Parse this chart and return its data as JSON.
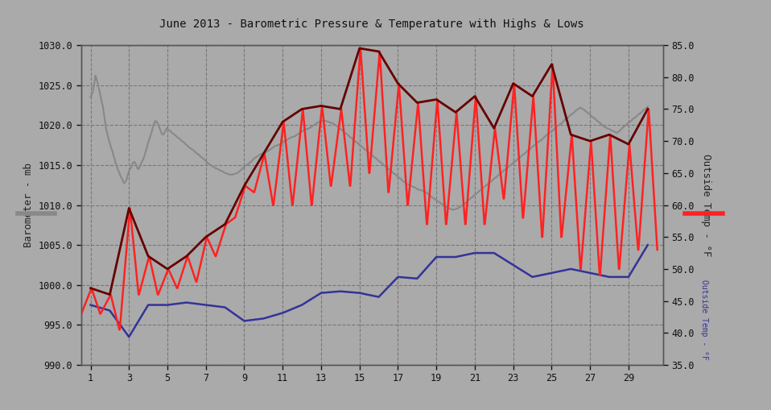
{
  "title": "June 2013 - Barometric Pressure & Temperature with Highs & Lows",
  "ylabel_left": "Barometer - mb",
  "ylabel_right": "Outside Temp - °F",
  "xlim": [
    0.5,
    30.8
  ],
  "ylim_left": [
    990.0,
    1030.0
  ],
  "ylim_right": [
    35.0,
    85.0
  ],
  "yticks_left": [
    990.0,
    995.0,
    1000.0,
    1005.0,
    1010.0,
    1015.0,
    1020.0,
    1025.0,
    1030.0
  ],
  "yticks_right": [
    35.0,
    40.0,
    45.0,
    50.0,
    55.0,
    60.0,
    65.0,
    70.0,
    75.0,
    80.0,
    85.0
  ],
  "xticks": [
    1,
    3,
    5,
    7,
    9,
    11,
    13,
    15,
    17,
    19,
    21,
    23,
    25,
    27,
    29
  ],
  "bg_color": "#aaaaaa",
  "plot_bg_color": "#aaaaaa",
  "baro_color": "#888888",
  "baro_daily_color": "#333399",
  "temp_high_color": "#660000",
  "temp_low_color": "#ff2222",
  "days": [
    1,
    2,
    3,
    4,
    5,
    6,
    7,
    8,
    9,
    10,
    11,
    12,
    13,
    14,
    15,
    16,
    17,
    18,
    19,
    20,
    21,
    22,
    23,
    24,
    25,
    26,
    27,
    28,
    29,
    30
  ],
  "temp_high_f": [
    47.0,
    46.0,
    59.5,
    52.0,
    50.0,
    52.0,
    55.0,
    57.0,
    63.0,
    68.0,
    73.0,
    75.0,
    75.5,
    75.0,
    84.5,
    84.0,
    79.0,
    76.0,
    76.5,
    74.5,
    77.0,
    72.0,
    79.0,
    77.0,
    82.0,
    71.0,
    70.0,
    71.0,
    69.5,
    75.0
  ],
  "temp_low_f": [
    43.0,
    43.0,
    40.5,
    46.0,
    46.0,
    47.0,
    48.0,
    52.0,
    58.0,
    62.0,
    60.0,
    60.0,
    60.0,
    63.0,
    63.0,
    65.0,
    62.0,
    60.0,
    57.0,
    57.0,
    57.0,
    57.0,
    61.0,
    58.0,
    55.0,
    55.0,
    50.0,
    49.0,
    50.0,
    53.0
  ],
  "baro_continuous_x": [
    1.0,
    1.03,
    1.06,
    1.09,
    1.13,
    1.16,
    1.19,
    1.22,
    1.25,
    1.28,
    1.31,
    1.34,
    1.38,
    1.41,
    1.44,
    1.47,
    1.5,
    1.53,
    1.56,
    1.59,
    1.63,
    1.66,
    1.69,
    1.72,
    1.75,
    1.78,
    1.81,
    1.84,
    1.88,
    1.91,
    1.94,
    1.97,
    2.0,
    2.03,
    2.06,
    2.09,
    2.13,
    2.16,
    2.19,
    2.22,
    2.25,
    2.28,
    2.31,
    2.34,
    2.38,
    2.41,
    2.44,
    2.47,
    2.5,
    2.53,
    2.56,
    2.59,
    2.63,
    2.66,
    2.69,
    2.72,
    2.75,
    2.78,
    2.81,
    2.84,
    2.88,
    2.91,
    2.94,
    2.97,
    3.0,
    3.03,
    3.06,
    3.09,
    3.13,
    3.16,
    3.19,
    3.22,
    3.25,
    3.28,
    3.31,
    3.34,
    3.38,
    3.41,
    3.44,
    3.47,
    3.5,
    3.53,
    3.56,
    3.59,
    3.63,
    3.66,
    3.69,
    3.72,
    3.75,
    3.78,
    3.81,
    3.84,
    3.88,
    3.91,
    3.94,
    3.97,
    4.0,
    4.03,
    4.06,
    4.09,
    4.13,
    4.16,
    4.19,
    4.22,
    4.25,
    4.28,
    4.31,
    4.34,
    4.38,
    4.41,
    4.44,
    4.47,
    4.5,
    4.53,
    4.56,
    4.59,
    4.63,
    4.66,
    4.69,
    4.72,
    4.75,
    4.78,
    4.81,
    4.84,
    4.88,
    4.91,
    4.94,
    4.97,
    5.0,
    5.13,
    5.25,
    5.38,
    5.5,
    5.63,
    5.75,
    5.88,
    6.0,
    6.13,
    6.25,
    6.38,
    6.5,
    6.63,
    6.75,
    6.88,
    7.0,
    7.13,
    7.25,
    7.38,
    7.5,
    7.63,
    7.75,
    7.88,
    8.0,
    8.13,
    8.25,
    8.38,
    8.5,
    8.63,
    8.75,
    8.88,
    9.0,
    9.13,
    9.25,
    9.38,
    9.5,
    9.63,
    9.75,
    9.88,
    10.0,
    10.13,
    10.25,
    10.38,
    10.5,
    10.63,
    10.75,
    10.88,
    11.0,
    11.13,
    11.25,
    11.38,
    11.5,
    11.63,
    11.75,
    11.88,
    12.0,
    12.13,
    12.25,
    12.38,
    12.5,
    12.63,
    12.75,
    12.88,
    13.0,
    13.13,
    13.25,
    13.38,
    13.5,
    13.63,
    13.75,
    13.88,
    14.0,
    14.13,
    14.25,
    14.38,
    14.5,
    14.63,
    14.75,
    14.88,
    15.0,
    15.13,
    15.25,
    15.38,
    15.5,
    15.63,
    15.75,
    15.88,
    16.0,
    16.13,
    16.25,
    16.38,
    16.5,
    16.63,
    16.75,
    16.88,
    17.0,
    17.13,
    17.25,
    17.38,
    17.5,
    17.63,
    17.75,
    17.88,
    18.0,
    18.13,
    18.25,
    18.38,
    18.5,
    18.63,
    18.75,
    18.88,
    19.0,
    19.13,
    19.25,
    19.38,
    19.5,
    19.63,
    19.75,
    19.88,
    20.0,
    20.13,
    20.25,
    20.38,
    20.5,
    20.63,
    20.75,
    20.88,
    21.0,
    21.13,
    21.25,
    21.38,
    21.5,
    21.63,
    21.75,
    21.88,
    22.0,
    22.13,
    22.25,
    22.38,
    22.5,
    22.63,
    22.75,
    22.88,
    23.0,
    23.13,
    23.25,
    23.38,
    23.5,
    23.63,
    23.75,
    23.88,
    24.0,
    24.13,
    24.25,
    24.38,
    24.5,
    24.63,
    24.75,
    24.88,
    25.0,
    25.13,
    25.25,
    25.38,
    25.5,
    25.63,
    25.75,
    25.88,
    26.0,
    26.13,
    26.25,
    26.38,
    26.5,
    26.63,
    26.75,
    26.88,
    27.0,
    27.13,
    27.25,
    27.38,
    27.5,
    27.63,
    27.75,
    27.88,
    28.0,
    28.13,
    28.25,
    28.38,
    28.5,
    28.63,
    28.75,
    28.88,
    29.0,
    29.13,
    29.25,
    29.38,
    29.5,
    29.63,
    29.75,
    29.88,
    30.0
  ],
  "baro_continuous_y": [
    1023.5,
    1023.6,
    1023.8,
    1024.0,
    1024.3,
    1024.8,
    1025.2,
    1025.6,
    1026.2,
    1026.0,
    1025.8,
    1025.5,
    1025.2,
    1024.8,
    1024.5,
    1024.2,
    1023.8,
    1023.5,
    1023.2,
    1022.8,
    1022.5,
    1022.0,
    1021.5,
    1021.0,
    1020.5,
    1020.0,
    1019.5,
    1019.2,
    1018.8,
    1018.5,
    1018.2,
    1018.0,
    1017.8,
    1017.5,
    1017.2,
    1017.0,
    1016.8,
    1016.5,
    1016.2,
    1016.0,
    1015.8,
    1015.5,
    1015.2,
    1015.0,
    1014.8,
    1014.5,
    1014.3,
    1014.2,
    1014.0,
    1013.8,
    1013.6,
    1013.5,
    1013.3,
    1013.2,
    1013.0,
    1012.8,
    1012.7,
    1012.8,
    1012.9,
    1013.0,
    1013.2,
    1013.5,
    1013.8,
    1014.0,
    1014.2,
    1014.4,
    1014.5,
    1014.6,
    1014.8,
    1015.0,
    1015.2,
    1015.3,
    1015.4,
    1015.4,
    1015.3,
    1015.2,
    1015.0,
    1014.8,
    1014.6,
    1014.5,
    1014.5,
    1014.6,
    1014.8,
    1015.0,
    1015.2,
    1015.4,
    1015.5,
    1015.6,
    1015.8,
    1016.0,
    1016.2,
    1016.5,
    1016.8,
    1017.0,
    1017.3,
    1017.5,
    1017.8,
    1018.0,
    1018.2,
    1018.5,
    1018.8,
    1019.0,
    1019.2,
    1019.5,
    1019.8,
    1020.0,
    1020.2,
    1020.4,
    1020.5,
    1020.5,
    1020.4,
    1020.3,
    1020.2,
    1020.0,
    1019.8,
    1019.6,
    1019.4,
    1019.2,
    1019.0,
    1018.9,
    1018.8,
    1018.8,
    1018.9,
    1019.0,
    1019.2,
    1019.4,
    1019.5,
    1019.6,
    1019.5,
    1019.3,
    1019.0,
    1018.8,
    1018.5,
    1018.3,
    1018.0,
    1017.8,
    1017.5,
    1017.2,
    1017.0,
    1016.8,
    1016.5,
    1016.3,
    1016.0,
    1015.8,
    1015.5,
    1015.2,
    1015.0,
    1014.8,
    1014.6,
    1014.5,
    1014.3,
    1014.2,
    1014.0,
    1013.9,
    1013.8,
    1013.8,
    1013.9,
    1014.0,
    1014.2,
    1014.5,
    1014.8,
    1015.0,
    1015.2,
    1015.5,
    1015.8,
    1016.0,
    1016.2,
    1016.4,
    1016.5,
    1016.6,
    1016.8,
    1017.0,
    1017.2,
    1017.4,
    1017.5,
    1017.6,
    1017.8,
    1018.0,
    1018.2,
    1018.4,
    1018.5,
    1018.6,
    1018.8,
    1019.0,
    1019.2,
    1019.4,
    1019.5,
    1019.6,
    1019.8,
    1020.0,
    1020.2,
    1020.4,
    1020.5,
    1020.6,
    1020.5,
    1020.4,
    1020.3,
    1020.2,
    1020.0,
    1019.8,
    1019.5,
    1019.3,
    1019.0,
    1018.8,
    1018.5,
    1018.3,
    1018.0,
    1017.8,
    1017.5,
    1017.3,
    1017.0,
    1016.8,
    1016.5,
    1016.3,
    1016.0,
    1015.8,
    1015.5,
    1015.3,
    1015.0,
    1014.8,
    1014.5,
    1014.3,
    1014.0,
    1013.8,
    1013.5,
    1013.3,
    1013.0,
    1012.8,
    1012.6,
    1012.5,
    1012.3,
    1012.2,
    1012.0,
    1011.9,
    1011.8,
    1011.7,
    1011.5,
    1011.3,
    1011.0,
    1010.8,
    1010.6,
    1010.4,
    1010.2,
    1010.0,
    1009.8,
    1009.6,
    1009.5,
    1009.4,
    1009.5,
    1009.6,
    1009.8,
    1010.0,
    1010.2,
    1010.5,
    1010.8,
    1011.0,
    1011.3,
    1011.5,
    1011.8,
    1012.0,
    1012.3,
    1012.5,
    1012.8,
    1013.0,
    1013.3,
    1013.5,
    1013.8,
    1014.0,
    1014.3,
    1014.5,
    1014.8,
    1015.0,
    1015.3,
    1015.5,
    1015.8,
    1016.0,
    1016.3,
    1016.5,
    1016.8,
    1017.0,
    1017.3,
    1017.5,
    1017.8,
    1018.0,
    1018.2,
    1018.5,
    1018.8,
    1019.0,
    1019.2,
    1019.5,
    1019.8,
    1020.0,
    1020.2,
    1020.5,
    1020.8,
    1021.0,
    1021.3,
    1021.5,
    1021.8,
    1022.0,
    1022.2,
    1022.0,
    1021.8,
    1021.5,
    1021.3,
    1021.0,
    1020.8,
    1020.5,
    1020.3,
    1020.0,
    1019.8,
    1019.6,
    1019.5,
    1019.3,
    1019.2,
    1019.0,
    1019.2,
    1019.5,
    1019.8,
    1020.0,
    1020.3,
    1020.5,
    1020.8,
    1021.0,
    1021.3,
    1021.5,
    1021.8,
    1022.0,
    1022.3
  ],
  "baro_daily_x": [
    1,
    2,
    3,
    4,
    5,
    6,
    7,
    8,
    9,
    10,
    11,
    12,
    13,
    14,
    15,
    16,
    17,
    18,
    19,
    20,
    21,
    22,
    23,
    24,
    25,
    26,
    27,
    28,
    29,
    30
  ],
  "baro_daily_y": [
    997.5,
    996.8,
    993.5,
    997.5,
    997.5,
    997.8,
    997.5,
    997.2,
    995.5,
    995.8,
    996.5,
    997.5,
    999.0,
    999.2,
    999.0,
    998.5,
    1001.0,
    1000.8,
    1003.5,
    1003.5,
    1004.0,
    1004.0,
    1002.5,
    1001.0,
    1001.5,
    1002.0,
    1001.5,
    1001.0,
    1001.0,
    1005.0
  ]
}
